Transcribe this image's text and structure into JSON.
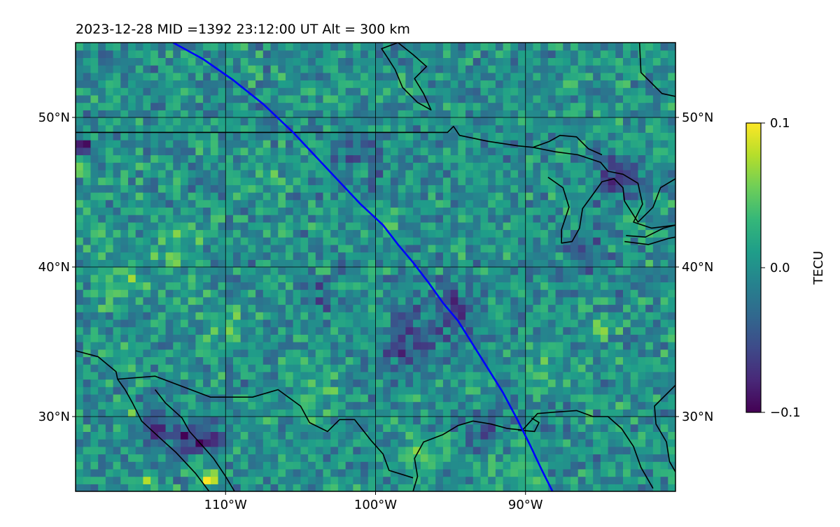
{
  "chart_data": {
    "type": "heatmap",
    "title": "2023-12-28  MID =1392    23:12:00  UT  Alt = 300 km",
    "projection": "lat-lon map",
    "xlim": [
      -120,
      -80
    ],
    "ylim": [
      25,
      55
    ],
    "x_ticks": [
      {
        "value": -110,
        "label": "110°W"
      },
      {
        "value": -100,
        "label": "100°W"
      },
      {
        "value": -90,
        "label": "90°W"
      }
    ],
    "y_ticks": [
      {
        "value": 30,
        "label": "30°N"
      },
      {
        "value": 40,
        "label": "40°N"
      },
      {
        "value": 50,
        "label": "50°N"
      }
    ],
    "grid": true,
    "colorbar": {
      "label": "TECU",
      "colormap": "viridis",
      "vmin": -0.1,
      "vmax": 0.1,
      "ticks": [
        {
          "value": 0.1,
          "label": "0.1"
        },
        {
          "value": 0.0,
          "label": "0.0"
        },
        {
          "value": -0.1,
          "label": "−0.1"
        }
      ]
    },
    "cell_size_deg": 0.5,
    "field_baseline": 0.0,
    "anomalies": [
      {
        "lon": -112,
        "lat": 28.5,
        "r": 1.4,
        "v": -0.08
      },
      {
        "lon": -114.5,
        "lat": 29.5,
        "r": 1.0,
        "v": -0.07
      },
      {
        "lon": -98,
        "lat": 35,
        "r": 1.6,
        "v": -0.06
      },
      {
        "lon": -95,
        "lat": 37,
        "r": 1.8,
        "v": -0.05
      },
      {
        "lon": -93,
        "lat": 29,
        "r": 1.2,
        "v": -0.05
      },
      {
        "lon": -84,
        "lat": 46,
        "r": 1.4,
        "v": -0.06
      },
      {
        "lon": -86,
        "lat": 41,
        "r": 1.5,
        "v": -0.04
      },
      {
        "lon": -104,
        "lat": 38,
        "r": 1.2,
        "v": -0.04
      },
      {
        "lon": -101,
        "lat": 47,
        "r": 1.6,
        "v": -0.04
      },
      {
        "lon": -119.5,
        "lat": 48.3,
        "r": 0.5,
        "v": -0.1
      },
      {
        "lon": -111,
        "lat": 26,
        "r": 0.6,
        "v": 0.1
      },
      {
        "lon": -115,
        "lat": 25.5,
        "r": 0.4,
        "v": 0.1
      },
      {
        "lon": -108,
        "lat": 26,
        "r": 0.3,
        "v": 0.1
      },
      {
        "lon": -112,
        "lat": 27,
        "r": 0.7,
        "v": 0.08
      },
      {
        "lon": -116,
        "lat": 30.5,
        "r": 0.4,
        "v": 0.09
      },
      {
        "lon": -119.5,
        "lat": 46.5,
        "r": 0.4,
        "v": 0.08
      },
      {
        "lon": -101,
        "lat": 46.5,
        "r": 0.4,
        "v": 0.07
      },
      {
        "lon": -99,
        "lat": 43,
        "r": 0.5,
        "v": 0.06
      },
      {
        "lon": -85,
        "lat": 36,
        "r": 0.7,
        "v": 0.05
      },
      {
        "lon": -113,
        "lat": 41,
        "r": 1.8,
        "v": 0.03
      },
      {
        "lon": -117,
        "lat": 39,
        "r": 1.6,
        "v": 0.03
      },
      {
        "lon": -104,
        "lat": 32,
        "r": 1.5,
        "v": 0.03
      },
      {
        "lon": -110,
        "lat": 36,
        "r": 1.5,
        "v": 0.025
      },
      {
        "lon": -97,
        "lat": 27,
        "r": 1.2,
        "v": 0.04
      },
      {
        "lon": -90,
        "lat": 26.5,
        "r": 1.2,
        "v": 0.04
      },
      {
        "lon": -107,
        "lat": 45,
        "r": 1.5,
        "v": 0.02
      },
      {
        "lon": -88,
        "lat": 33,
        "r": 1.3,
        "v": 0.03
      }
    ],
    "satellite_track": [
      [
        -113.5,
        55
      ],
      [
        -111.5,
        53.9
      ],
      [
        -109.5,
        52.5
      ],
      [
        -107.5,
        50.9
      ],
      [
        -105.5,
        49
      ],
      [
        -104,
        47.4
      ],
      [
        -102.5,
        45.8
      ],
      [
        -101,
        44.2
      ],
      [
        -99.5,
        42.8
      ],
      [
        -98.5,
        41.5
      ],
      [
        -97.5,
        40.3
      ],
      [
        -96.5,
        39
      ],
      [
        -95.5,
        37.6
      ],
      [
        -94.5,
        36.4
      ],
      [
        -93.5,
        34.8
      ],
      [
        -92.5,
        33.2
      ],
      [
        -91.5,
        31.6
      ],
      [
        -90.6,
        29.9
      ],
      [
        -89.7,
        28.1
      ],
      [
        -88.9,
        26.4
      ],
      [
        -88.2,
        25
      ]
    ],
    "track_color": "#0000ff",
    "boundaries": [
      [
        [
          -120,
          49
        ],
        [
          -95.2,
          49
        ],
        [
          -94.8,
          49.4
        ],
        [
          -94.4,
          48.8
        ],
        [
          -92.5,
          48.4
        ],
        [
          -90.5,
          48.1
        ],
        [
          -89.5,
          48.0
        ],
        [
          -88,
          47.7
        ],
        [
          -86.5,
          47.5
        ],
        [
          -85,
          47.0
        ],
        [
          -84.5,
          46.4
        ],
        [
          -83.5,
          46.2
        ],
        [
          -82.5,
          45.6
        ],
        [
          -82.2,
          44.2
        ],
        [
          -82.8,
          43.0
        ],
        [
          -81.6,
          42.6
        ],
        [
          -80,
          42.8
        ]
      ],
      [
        [
          -117.2,
          32.5
        ],
        [
          -114.7,
          32.7
        ],
        [
          -111,
          31.3
        ],
        [
          -108.2,
          31.3
        ],
        [
          -106.5,
          31.8
        ],
        [
          -105,
          30.7
        ],
        [
          -104.4,
          29.6
        ],
        [
          -103.2,
          29.0
        ],
        [
          -102.4,
          29.8
        ],
        [
          -101.4,
          29.8
        ],
        [
          -100.3,
          28.4
        ],
        [
          -99.5,
          27.5
        ],
        [
          -99.1,
          26.4
        ],
        [
          -97.5,
          25.9
        ]
      ],
      [
        [
          -80,
          32.1
        ],
        [
          -81.4,
          30.7
        ],
        [
          -81.3,
          29.5
        ],
        [
          -80.6,
          28.3
        ],
        [
          -80.4,
          27.0
        ],
        [
          -80,
          26.3
        ]
      ]
    ],
    "coastlines": [
      [
        [
          -120,
          34.4
        ],
        [
          -118.5,
          34.0
        ],
        [
          -117.3,
          33.0
        ],
        [
          -117.2,
          32.5
        ],
        [
          -116.7,
          31.8
        ],
        [
          -116.2,
          30.9
        ],
        [
          -115.6,
          29.7
        ],
        [
          -114.3,
          28.5
        ],
        [
          -113.3,
          27.6
        ],
        [
          -112.0,
          26.2
        ],
        [
          -111.1,
          25
        ]
      ],
      [
        [
          -114.7,
          31.8
        ],
        [
          -114.0,
          30.9
        ],
        [
          -112.9,
          29.9
        ],
        [
          -112.4,
          29.0
        ],
        [
          -111.5,
          28.0
        ],
        [
          -110.8,
          27.2
        ],
        [
          -110.0,
          26.0
        ],
        [
          -109.4,
          25
        ]
      ],
      [
        [
          -97.5,
          25.0
        ],
        [
          -97.2,
          26.0
        ],
        [
          -97.4,
          27.2
        ],
        [
          -96.8,
          28.3
        ],
        [
          -95.5,
          28.8
        ],
        [
          -94.5,
          29.4
        ],
        [
          -93.5,
          29.7
        ],
        [
          -92.3,
          29.5
        ],
        [
          -91.2,
          29.2
        ],
        [
          -90.2,
          29.1
        ],
        [
          -89.2,
          30.2
        ],
        [
          -88.0,
          30.3
        ],
        [
          -86.6,
          30.4
        ],
        [
          -85.5,
          30.0
        ],
        [
          -84.5,
          30.0
        ],
        [
          -83.6,
          29.2
        ],
        [
          -82.8,
          28.0
        ],
        [
          -82.3,
          26.6
        ],
        [
          -81.5,
          25.2
        ]
      ],
      [
        [
          -90.5,
          29.1
        ],
        [
          -89.4,
          29.0
        ],
        [
          -89.1,
          29.6
        ],
        [
          -89.6,
          29.9
        ]
      ],
      [
        [
          -88.5,
          46.0
        ],
        [
          -87.5,
          45.3
        ],
        [
          -87.1,
          44.0
        ],
        [
          -87.6,
          42.5
        ],
        [
          -87.6,
          41.6
        ],
        [
          -86.9,
          41.7
        ],
        [
          -86.4,
          42.6
        ],
        [
          -86.2,
          43.9
        ],
        [
          -85.4,
          45.0
        ],
        [
          -84.9,
          45.7
        ],
        [
          -84.1,
          45.9
        ],
        [
          -83.5,
          45.3
        ],
        [
          -83.4,
          44.4
        ],
        [
          -82.5,
          43.0
        ],
        [
          -81.5,
          44.0
        ],
        [
          -81.0,
          45.3
        ],
        [
          -80.0,
          45.9
        ]
      ],
      [
        [
          -83.3,
          42.1
        ],
        [
          -82.0,
          42.0
        ],
        [
          -80.8,
          42.6
        ],
        [
          -80.0,
          42.8
        ]
      ],
      [
        [
          -83.4,
          41.7
        ],
        [
          -81.8,
          41.5
        ],
        [
          -80.5,
          41.9
        ],
        [
          -80.0,
          42.0
        ]
      ],
      [
        [
          -89.5,
          48.0
        ],
        [
          -88.4,
          48.4
        ],
        [
          -87.7,
          48.8
        ],
        [
          -86.6,
          48.7
        ],
        [
          -85.8,
          47.9
        ],
        [
          -84.9,
          47.5
        ]
      ],
      [
        [
          -98.5,
          55.0
        ],
        [
          -97.5,
          54.2
        ],
        [
          -96.6,
          53.4
        ],
        [
          -97.4,
          52.6
        ],
        [
          -96.8,
          51.6
        ],
        [
          -96.3,
          50.5
        ],
        [
          -97.2,
          51.0
        ],
        [
          -98.2,
          52.0
        ],
        [
          -98.7,
          53.2
        ],
        [
          -99.2,
          54.0
        ],
        [
          -99.6,
          54.6
        ],
        [
          -98.5,
          55.0
        ]
      ],
      [
        [
          -82.4,
          55.0
        ],
        [
          -82.3,
          53.0
        ],
        [
          -80.9,
          51.6
        ],
        [
          -80.0,
          51.4
        ]
      ]
    ]
  }
}
